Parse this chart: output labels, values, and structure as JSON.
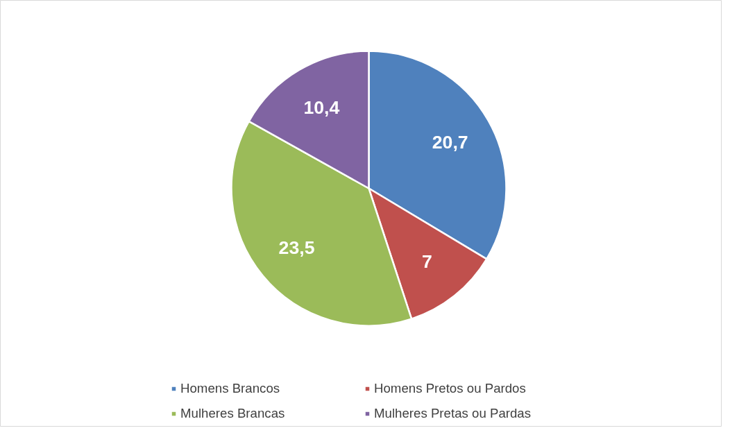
{
  "chart_data": {
    "type": "pie",
    "categories": [
      "Homens Brancos",
      "Homens Pretos ou Pardos",
      "Mulheres Brancas",
      "Mulheres Pretas ou Pardas"
    ],
    "values": [
      20.7,
      7,
      23.5,
      10.4
    ],
    "colors": [
      "#4f81bd",
      "#c0504d",
      "#9bbb59",
      "#8064a2"
    ],
    "value_labels": [
      "20,7",
      "7",
      "23,5",
      "10,4"
    ],
    "legend": "bottom"
  }
}
